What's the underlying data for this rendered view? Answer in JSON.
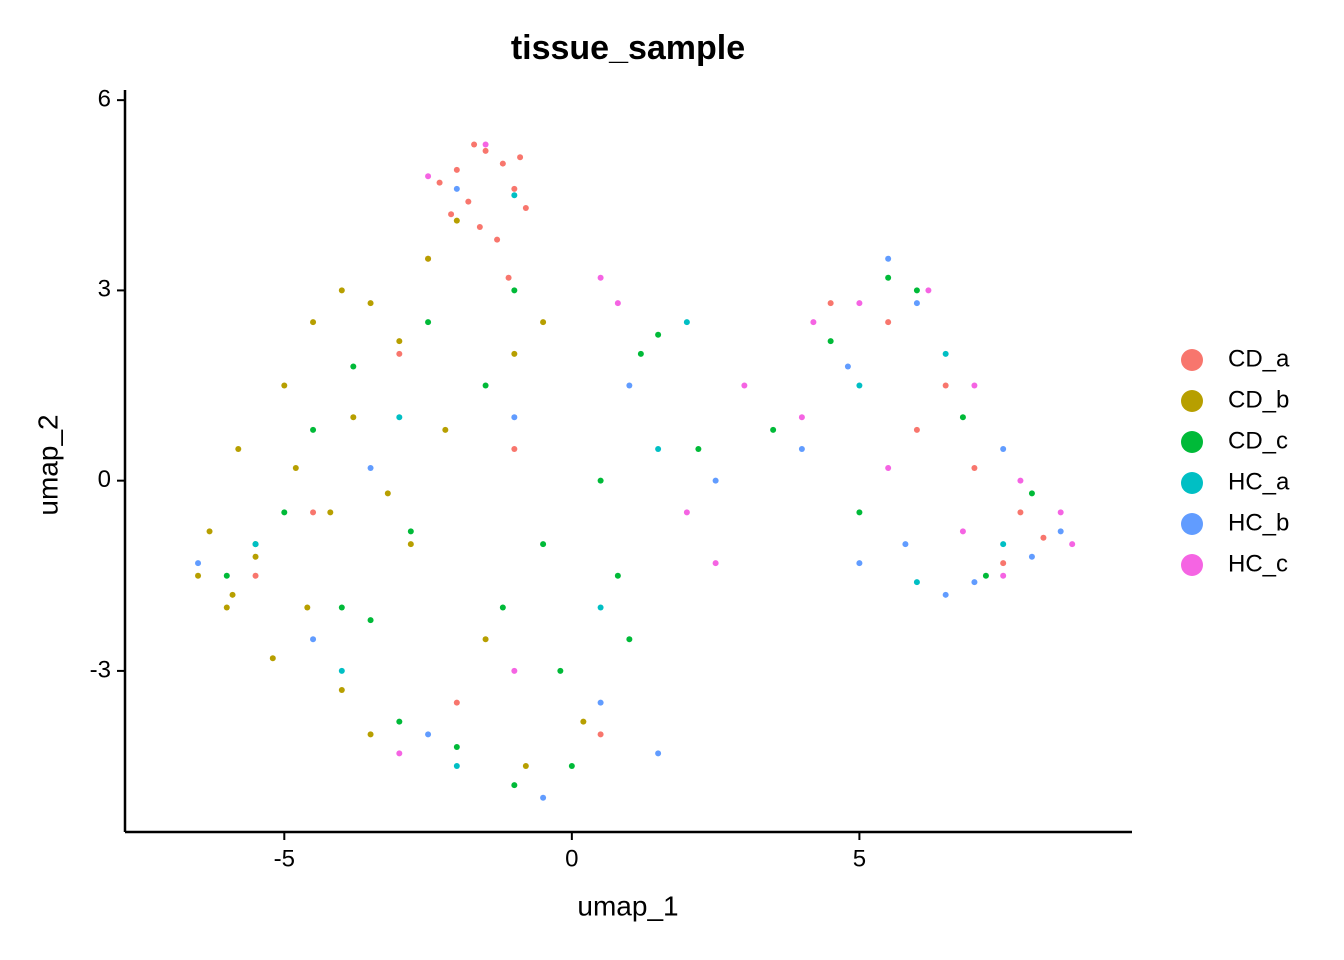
{
  "chart_data": {
    "type": "scatter",
    "title": "tissue_sample",
    "xlabel": "umap_1",
    "ylabel": "umap_2",
    "xlim": [
      -7.77,
      9.74
    ],
    "ylim": [
      -5.54,
      6.16
    ],
    "xticks": [
      -5,
      0,
      5
    ],
    "yticks": [
      -3,
      0,
      3,
      6
    ],
    "legend": "right",
    "series": [
      {
        "name": "CD_a",
        "color": "#F8766D",
        "x": [
          -1.5,
          -2.0,
          -1.0,
          -1.8,
          -1.2,
          -2.3,
          -0.8,
          -1.6,
          -2.1,
          -1.3,
          -0.9,
          -1.7,
          -2.5,
          -1.1,
          -3.0,
          -4.5,
          -5.5,
          -2.0,
          0.5,
          -1.0,
          5.5,
          6.5,
          7.0,
          7.8,
          8.2,
          6.0,
          4.5,
          7.5
        ],
        "values": [
          5.2,
          4.9,
          4.6,
          4.4,
          5.0,
          4.7,
          4.3,
          4.0,
          4.2,
          3.8,
          5.1,
          5.3,
          3.5,
          3.2,
          2.0,
          -0.5,
          -1.5,
          -3.5,
          -4.0,
          0.5,
          2.5,
          1.5,
          0.2,
          -0.5,
          -0.9,
          0.8,
          2.8,
          -1.3
        ]
      },
      {
        "name": "CD_b",
        "color": "#B79F00",
        "x": [
          -6.3,
          -5.8,
          -5.0,
          -4.5,
          -4.0,
          -3.5,
          -3.0,
          -5.5,
          -6.0,
          -4.8,
          -4.2,
          -3.8,
          -2.5,
          -2.0,
          -1.0,
          -0.5,
          -6.5,
          -5.2,
          -4.0,
          -3.2,
          -2.8,
          -1.5,
          0.2,
          -0.8,
          -3.5,
          -4.6,
          -5.9,
          -2.2
        ],
        "values": [
          -0.8,
          0.5,
          1.5,
          2.5,
          3.0,
          2.8,
          2.2,
          -1.2,
          -2.0,
          0.2,
          -0.5,
          1.0,
          3.5,
          4.1,
          2.0,
          2.5,
          -1.5,
          -2.8,
          -3.3,
          -0.2,
          -1.0,
          -2.5,
          -3.8,
          -4.5,
          -4.0,
          -2.0,
          -1.8,
          0.8
        ]
      },
      {
        "name": "CD_c",
        "color": "#00BA38",
        "x": [
          -6.0,
          -5.0,
          -4.0,
          -3.0,
          -2.0,
          -1.0,
          0.0,
          1.0,
          1.5,
          0.5,
          -0.5,
          -1.5,
          -2.5,
          -3.5,
          -4.5,
          -5.5,
          -3.8,
          -2.8,
          -0.2,
          0.8,
          1.2,
          2.2,
          3.5,
          4.5,
          5.5,
          6.0,
          6.8,
          5.0,
          7.2,
          8.0,
          -1.0,
          -1.2
        ],
        "values": [
          -1.5,
          -0.5,
          -2.0,
          -3.8,
          -4.2,
          -4.8,
          -4.5,
          -2.5,
          2.3,
          0.0,
          -1.0,
          1.5,
          2.5,
          -2.2,
          0.8,
          -1.0,
          1.8,
          -0.8,
          -3.0,
          -1.5,
          2.0,
          0.5,
          0.8,
          2.2,
          3.2,
          3.0,
          1.0,
          -0.5,
          -1.5,
          -0.2,
          3.0,
          -2.0
        ]
      },
      {
        "name": "HC_a",
        "color": "#00BFC4",
        "x": [
          -5.5,
          -3.0,
          -1.0,
          0.5,
          2.0,
          5.0,
          6.5,
          7.5,
          -4.0,
          1.5,
          -2.0,
          6.0
        ],
        "values": [
          -1.0,
          1.0,
          4.5,
          -2.0,
          2.5,
          1.5,
          2.0,
          -1.0,
          -3.0,
          0.5,
          -4.5,
          -1.6
        ]
      },
      {
        "name": "HC_b",
        "color": "#619CFF",
        "x": [
          -6.5,
          -4.5,
          -2.5,
          -1.0,
          0.5,
          1.5,
          2.5,
          4.0,
          5.0,
          5.5,
          6.5,
          7.0,
          7.5,
          8.5,
          6.0,
          4.8,
          -3.5,
          -0.5,
          1.0,
          -2.0,
          5.8,
          8.0
        ],
        "values": [
          -1.3,
          -2.5,
          -4.0,
          1.0,
          -3.5,
          -4.3,
          0.0,
          0.5,
          -1.3,
          3.5,
          -1.8,
          -1.6,
          0.5,
          -0.8,
          2.8,
          1.8,
          0.2,
          -5.0,
          1.5,
          4.6,
          -1.0,
          -1.2
        ]
      },
      {
        "name": "HC_c",
        "color": "#F564E3",
        "x": [
          -1.5,
          0.8,
          2.0,
          3.0,
          4.0,
          5.0,
          6.2,
          7.0,
          7.8,
          8.5,
          8.7,
          6.8,
          5.5,
          4.2,
          7.5,
          -3.0,
          -1.0,
          0.5,
          2.5,
          -2.5
        ],
        "values": [
          5.3,
          2.8,
          -0.5,
          1.5,
          1.0,
          2.8,
          3.0,
          1.5,
          0.0,
          -0.5,
          -1.0,
          -0.8,
          0.2,
          2.5,
          -1.5,
          -4.3,
          -3.0,
          3.2,
          -1.3,
          4.8
        ]
      }
    ]
  }
}
